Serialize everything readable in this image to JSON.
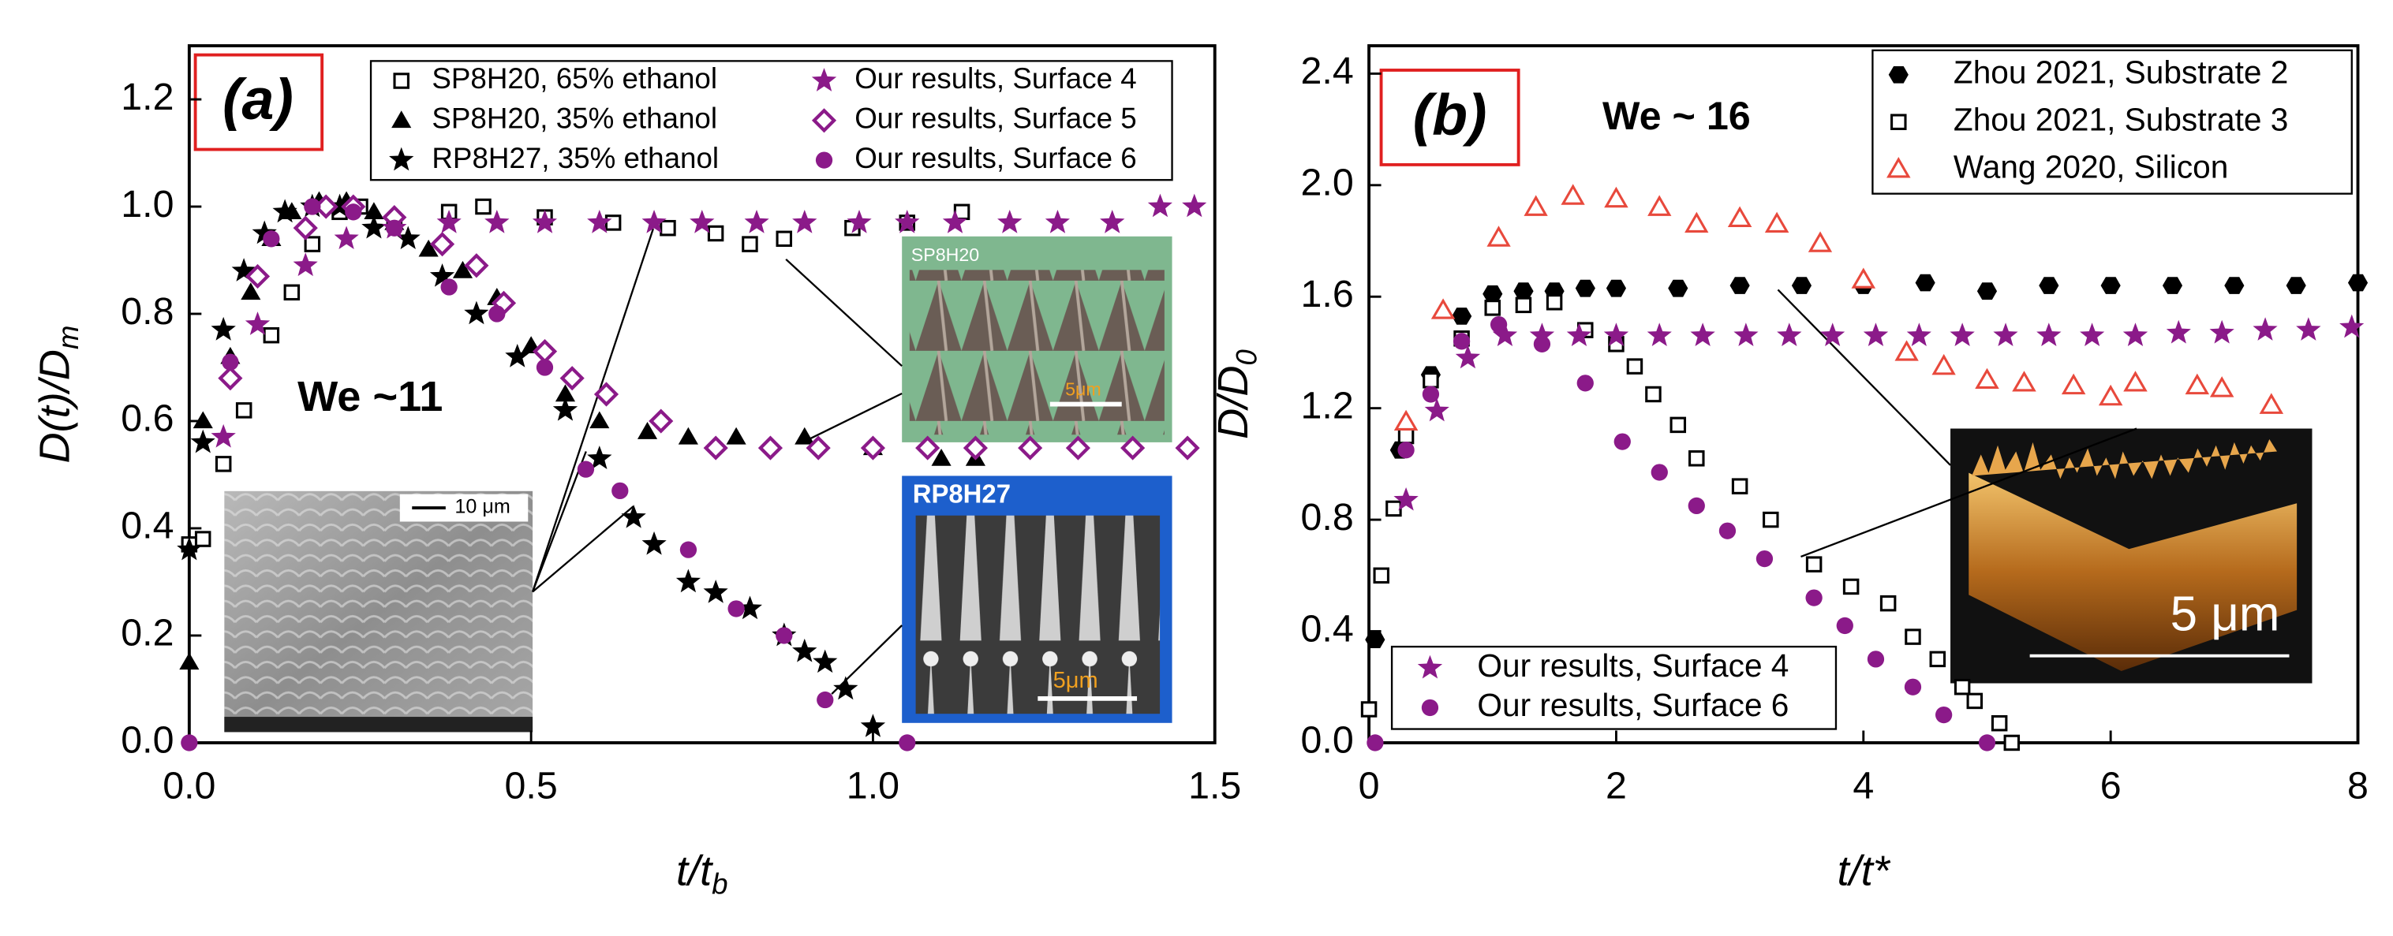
{
  "chart_data": [
    {
      "type": "scatter",
      "panel_label": "(a)",
      "annotation": "We ~11",
      "xlabel": {
        "main": "t/t",
        "sub": "b"
      },
      "ylabel": {
        "main": "D(t)/D",
        "sub": "m"
      },
      "xlim": [
        0,
        1.5
      ],
      "ylim": [
        0,
        1.3
      ],
      "xticks": [
        {
          "value": 0,
          "label": "0.0"
        },
        0.5,
        {
          "value": 1,
          "label": "1.0"
        },
        1.5
      ],
      "yticks": [
        {
          "value": 0,
          "label": "0.0"
        },
        0.2,
        0.4,
        0.6,
        0.8,
        {
          "value": 1,
          "label": "1.0"
        },
        1.2
      ],
      "legends": [
        {
          "loc": "upper center",
          "columns": 2,
          "series": [
            0,
            1,
            2,
            3,
            4,
            5
          ]
        }
      ],
      "inset_texts": [
        "10 μm",
        "SP8H20",
        "5μm",
        "RP8H27",
        "5μm"
      ],
      "series": [
        {
          "name": "SP8H20, 65% ethanol",
          "marker": "square-open",
          "color": "#000000",
          "x": [
            0.0,
            0.02,
            0.05,
            0.08,
            0.12,
            0.15,
            0.18,
            0.22,
            0.25,
            0.3,
            0.38,
            0.43,
            0.52,
            0.62,
            0.7,
            0.77,
            0.82,
            0.87,
            0.97,
            1.05,
            1.13
          ],
          "y": [
            0.37,
            0.38,
            0.52,
            0.62,
            0.76,
            0.84,
            0.93,
            0.99,
            1.0,
            0.97,
            0.99,
            1.0,
            0.98,
            0.97,
            0.96,
            0.95,
            0.93,
            0.94,
            0.96,
            0.97,
            0.99
          ]
        },
        {
          "name": "SP8H20, 35% ethanol",
          "marker": "triangle",
          "color": "#000000",
          "x": [
            0.0,
            0.02,
            0.06,
            0.09,
            0.12,
            0.15,
            0.19,
            0.23,
            0.27,
            0.3,
            0.35,
            0.4,
            0.45,
            0.5,
            0.55,
            0.6,
            0.67,
            0.73,
            0.8,
            0.9,
            1.0,
            1.1,
            1.15
          ],
          "y": [
            0.15,
            0.6,
            0.72,
            0.84,
            0.94,
            0.99,
            1.01,
            1.01,
            0.99,
            0.97,
            0.92,
            0.88,
            0.83,
            0.74,
            0.65,
            0.6,
            0.58,
            0.57,
            0.57,
            0.57,
            0.55,
            0.53,
            0.53
          ]
        },
        {
          "name": "RP8H27, 35% ethanol",
          "marker": "star",
          "color": "#000000",
          "x": [
            0.0,
            0.02,
            0.05,
            0.08,
            0.11,
            0.14,
            0.18,
            0.22,
            0.27,
            0.32,
            0.37,
            0.42,
            0.48,
            0.55,
            0.6,
            0.65,
            0.68,
            0.73,
            0.77,
            0.82,
            0.87,
            0.9,
            0.93,
            0.96,
            1.0
          ],
          "y": [
            0.36,
            0.56,
            0.77,
            0.88,
            0.95,
            0.99,
            1.0,
            1.0,
            0.96,
            0.94,
            0.87,
            0.8,
            0.72,
            0.62,
            0.53,
            0.42,
            0.37,
            0.3,
            0.28,
            0.25,
            0.2,
            0.17,
            0.15,
            0.1,
            0.03
          ]
        },
        {
          "name": "Our results, Surface 4",
          "marker": "star",
          "color": "#8b1a89",
          "x": [
            0.05,
            0.1,
            0.17,
            0.23,
            0.3,
            0.38,
            0.45,
            0.52,
            0.6,
            0.68,
            0.75,
            0.83,
            0.9,
            0.98,
            1.05,
            1.12,
            1.2,
            1.27,
            1.35,
            1.42,
            1.47
          ],
          "y": [
            0.57,
            0.78,
            0.89,
            0.94,
            0.96,
            0.97,
            0.97,
            0.97,
            0.97,
            0.97,
            0.97,
            0.97,
            0.97,
            0.97,
            0.97,
            0.97,
            0.97,
            0.97,
            0.97,
            1.0,
            1.0
          ]
        },
        {
          "name": "Our results, Surface 5",
          "marker": "diamond-open",
          "color": "#8b1a89",
          "x": [
            0.06,
            0.1,
            0.17,
            0.2,
            0.24,
            0.3,
            0.37,
            0.42,
            0.46,
            0.52,
            0.56,
            0.61,
            0.69,
            0.77,
            0.85,
            0.92,
            1.0,
            1.08,
            1.15,
            1.23,
            1.3,
            1.38,
            1.46
          ],
          "y": [
            0.68,
            0.87,
            0.96,
            1.0,
            1.0,
            0.98,
            0.93,
            0.89,
            0.82,
            0.73,
            0.68,
            0.65,
            0.6,
            0.55,
            0.55,
            0.55,
            0.55,
            0.55,
            0.55,
            0.55,
            0.55,
            0.55,
            0.55
          ]
        },
        {
          "name": "Our results, Surface 6",
          "marker": "circle",
          "color": "#8b1a89",
          "x": [
            0.0,
            0.06,
            0.12,
            0.18,
            0.24,
            0.3,
            0.38,
            0.45,
            0.52,
            0.58,
            0.63,
            0.73,
            0.8,
            0.87,
            0.93,
            1.05
          ],
          "y": [
            0.0,
            0.71,
            0.94,
            1.0,
            0.99,
            0.96,
            0.85,
            0.8,
            0.7,
            0.51,
            0.47,
            0.36,
            0.25,
            0.2,
            0.08,
            0.0
          ]
        }
      ]
    },
    {
      "type": "scatter",
      "panel_label": "(b)",
      "annotation": "We ~ 16",
      "xlabel": {
        "main": "t/t*"
      },
      "ylabel": {
        "main": "D/D",
        "sub": "0"
      },
      "xlim": [
        0,
        8
      ],
      "ylim": [
        0,
        2.5
      ],
      "xticks": [
        0,
        2,
        4,
        6,
        8
      ],
      "yticks": [
        {
          "value": 0,
          "label": "0.0"
        },
        0.4,
        0.8,
        1.2,
        1.6,
        {
          "value": 2,
          "label": "2.0"
        },
        2.4
      ],
      "legends": [
        {
          "loc": "upper right",
          "columns": 1,
          "series": [
            0,
            1,
            2
          ]
        },
        {
          "loc": "lower left",
          "columns": 1,
          "series": [
            3,
            4
          ]
        }
      ],
      "inset_texts": [
        "5 μm"
      ],
      "series": [
        {
          "name": "Zhou 2021, Substrate 2",
          "marker": "hexagon",
          "color": "#000000",
          "x": [
            0.05,
            0.25,
            0.5,
            0.75,
            1.0,
            1.25,
            1.5,
            1.75,
            2.0,
            2.5,
            3.0,
            3.5,
            4.0,
            4.5,
            5.0,
            5.5,
            6.0,
            6.5,
            7.0,
            7.5,
            8.0
          ],
          "y": [
            0.37,
            1.05,
            1.32,
            1.53,
            1.61,
            1.62,
            1.62,
            1.63,
            1.63,
            1.63,
            1.64,
            1.64,
            1.64,
            1.65,
            1.62,
            1.64,
            1.64,
            1.64,
            1.64,
            1.64,
            1.65
          ]
        },
        {
          "name": "Zhou 2021, Substrate 3",
          "marker": "square-open",
          "color": "#000000",
          "x": [
            0.0,
            0.1,
            0.2,
            0.3,
            0.5,
            0.75,
            1.0,
            1.25,
            1.5,
            1.75,
            2.0,
            2.15,
            2.3,
            2.5,
            2.65,
            3.0,
            3.25,
            3.6,
            3.9,
            4.2,
            4.4,
            4.6,
            4.8,
            4.9,
            5.1,
            5.2
          ],
          "y": [
            0.12,
            0.6,
            0.84,
            1.1,
            1.3,
            1.45,
            1.56,
            1.57,
            1.58,
            1.48,
            1.43,
            1.35,
            1.25,
            1.14,
            1.02,
            0.92,
            0.8,
            0.64,
            0.56,
            0.5,
            0.38,
            0.3,
            0.2,
            0.15,
            0.07,
            0.0
          ]
        },
        {
          "name": "Wang 2020, Silicon",
          "marker": "triangle-open",
          "color": "#e8493c",
          "x": [
            0.3,
            0.6,
            1.05,
            1.35,
            1.65,
            2.0,
            2.35,
            2.65,
            3.0,
            3.3,
            3.65,
            4.0,
            4.35,
            4.65,
            5.0,
            5.3,
            5.7,
            6.0,
            6.2,
            6.7,
            6.9,
            7.3
          ],
          "y": [
            1.15,
            1.55,
            1.81,
            1.92,
            1.96,
            1.95,
            1.92,
            1.86,
            1.88,
            1.86,
            1.79,
            1.66,
            1.4,
            1.35,
            1.3,
            1.29,
            1.28,
            1.24,
            1.29,
            1.28,
            1.27,
            1.21
          ]
        },
        {
          "name": "Our results, Surface 4",
          "marker": "star",
          "color": "#8b1a89",
          "x": [
            0.3,
            0.55,
            0.8,
            1.1,
            1.4,
            1.7,
            2.0,
            2.35,
            2.7,
            3.05,
            3.4,
            3.75,
            4.1,
            4.45,
            4.8,
            5.15,
            5.5,
            5.85,
            6.2,
            6.55,
            6.9,
            7.25,
            7.6,
            7.95
          ],
          "y": [
            0.87,
            1.19,
            1.38,
            1.46,
            1.46,
            1.46,
            1.46,
            1.46,
            1.46,
            1.46,
            1.46,
            1.46,
            1.46,
            1.46,
            1.46,
            1.46,
            1.46,
            1.46,
            1.46,
            1.47,
            1.47,
            1.48,
            1.48,
            1.49
          ]
        },
        {
          "name": "Our results, Surface 6",
          "marker": "circle",
          "color": "#8b1a89",
          "x": [
            0.05,
            0.3,
            0.5,
            0.75,
            1.05,
            1.4,
            1.75,
            2.05,
            2.35,
            2.65,
            2.9,
            3.2,
            3.6,
            3.85,
            4.1,
            4.4,
            4.65,
            5.0
          ],
          "y": [
            0.0,
            1.05,
            1.25,
            1.44,
            1.5,
            1.43,
            1.29,
            1.08,
            0.97,
            0.85,
            0.76,
            0.66,
            0.52,
            0.42,
            0.3,
            0.2,
            0.1,
            0.0
          ]
        }
      ]
    }
  ]
}
